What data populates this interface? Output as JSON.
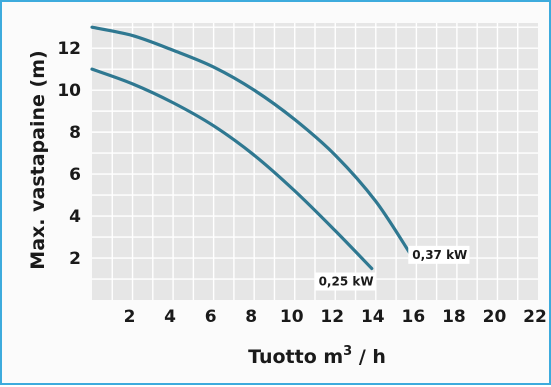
{
  "chart_data": {
    "type": "line",
    "title": "",
    "ylabel": "Max. vastapaine (m)",
    "xlabel_main": "Tuotto m",
    "xlabel_sup": "3",
    "xlabel_tail": " / h",
    "xlim": [
      0,
      22
    ],
    "ylim": [
      0,
      13.2
    ],
    "x_ticks": [
      "2",
      "4",
      "6",
      "8",
      "10",
      "12",
      "14",
      "16",
      "18",
      "20",
      "22"
    ],
    "y_ticks": [
      "2",
      "4",
      "6",
      "8",
      "10",
      "12"
    ],
    "grid": true,
    "series": [
      {
        "name": "0,25 kW",
        "x": [
          0,
          2,
          4,
          6,
          8,
          10,
          12,
          13.8
        ],
        "y": [
          11.0,
          10.3,
          9.4,
          8.3,
          6.9,
          5.2,
          3.3,
          1.5
        ]
      },
      {
        "name": "0,37 kW",
        "x": [
          0,
          2,
          4,
          6,
          8,
          10,
          12,
          14,
          15.7
        ],
        "y": [
          13.0,
          12.6,
          11.9,
          11.1,
          10.0,
          8.6,
          6.9,
          4.7,
          2.2
        ]
      }
    ],
    "colors": {
      "line": "#2f7891",
      "grid_bg": "#e6e6e6",
      "grid_line": "#ffffff",
      "border": "#3dabdd"
    }
  }
}
